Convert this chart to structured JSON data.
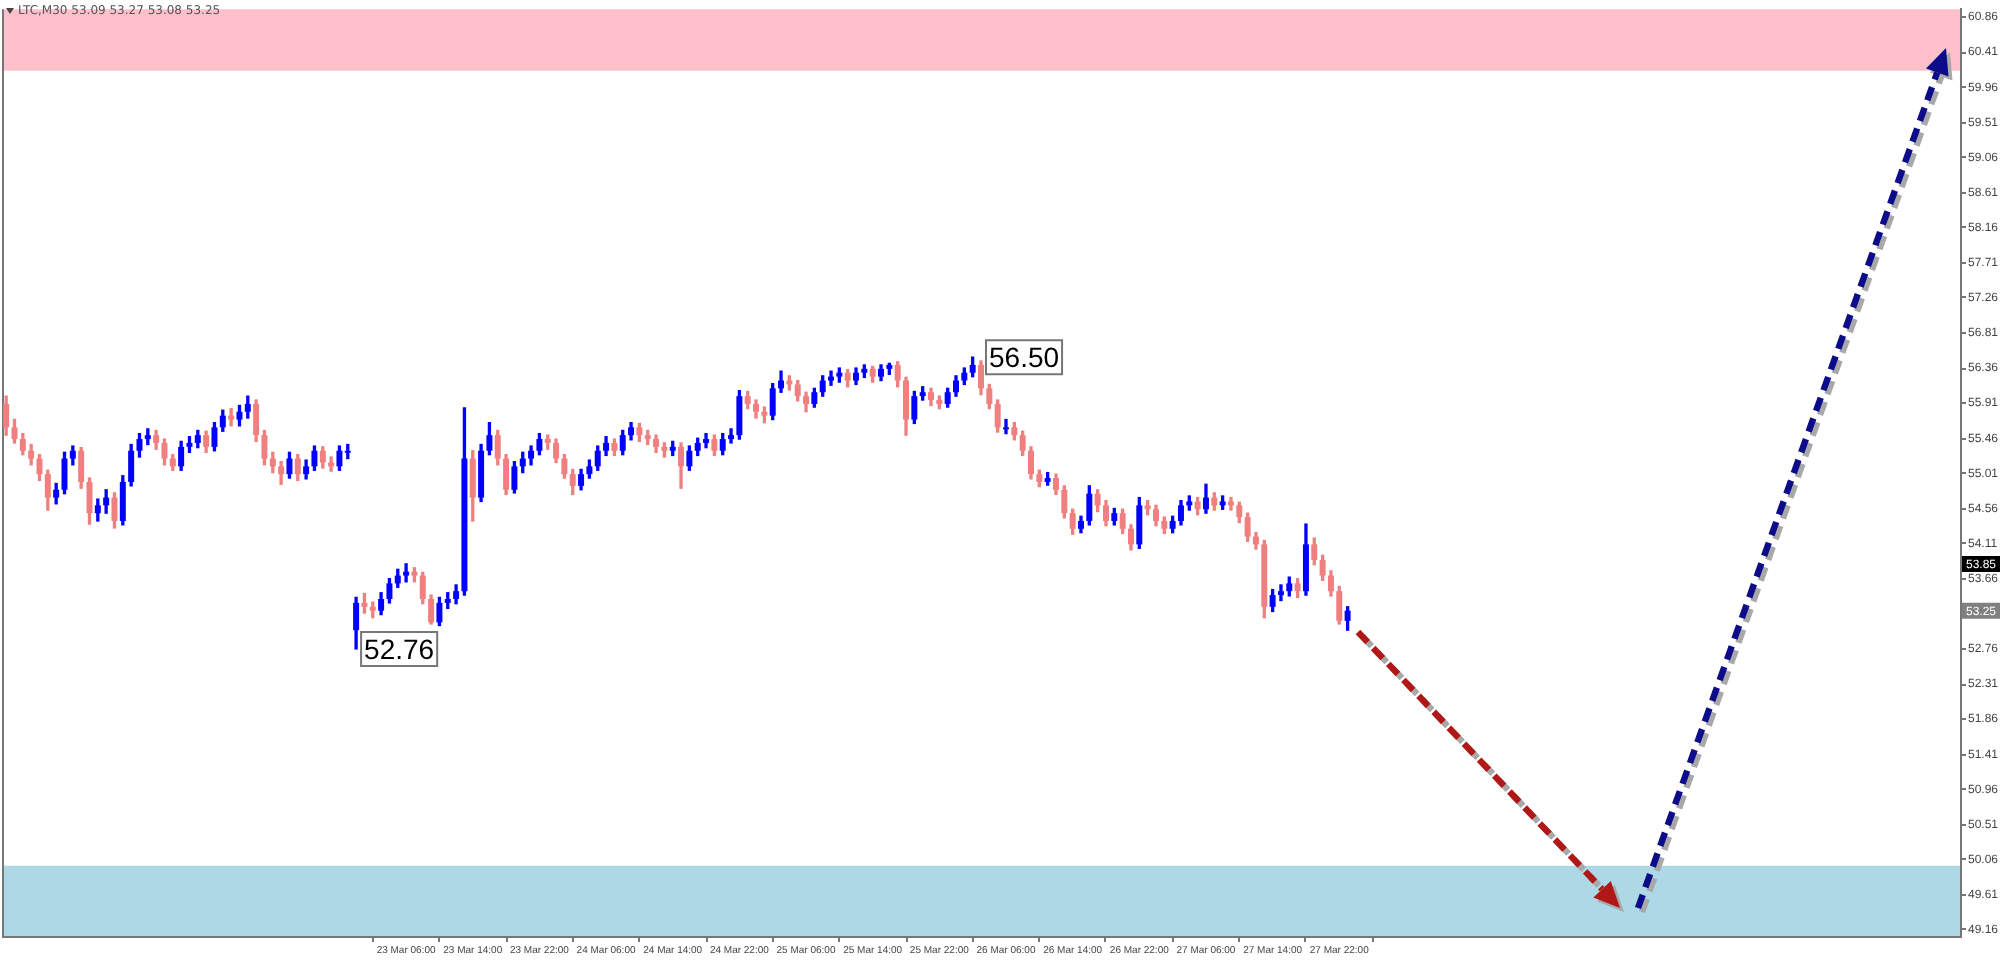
{
  "chart_data": {
    "type": "candlestick",
    "title": "LTC,M30 53.09 53.27 53.08 53.25",
    "categories": [
      null,
      null,
      null,
      null,
      null,
      null,
      null,
      null,
      null,
      null,
      null,
      null,
      null,
      null,
      null,
      null,
      null,
      null,
      null,
      null,
      null,
      null,
      null,
      null,
      null,
      null,
      null,
      null,
      null,
      null,
      null,
      null,
      null,
      null,
      null,
      null,
      null,
      null,
      null,
      null,
      null,
      null,
      null,
      null,
      null,
      null,
      null,
      null,
      "23 Mar 06:00",
      null,
      null,
      null,
      null,
      null,
      null,
      null,
      "23 Mar 14:00",
      null,
      null,
      null,
      null,
      null,
      null,
      null,
      "23 Mar 22:00",
      null,
      null,
      null,
      null,
      null,
      null,
      null,
      "24 Mar 06:00",
      null,
      null,
      null,
      null,
      null,
      null,
      null,
      "24 Mar 14:00",
      null,
      null,
      null,
      null,
      null,
      null,
      null,
      "24 Mar 22:00",
      null,
      null,
      null,
      null,
      null,
      null,
      null,
      "25 Mar 06:00",
      null,
      null,
      null,
      null,
      null,
      null,
      null,
      "25 Mar 14:00",
      null,
      null,
      null,
      null,
      null,
      null,
      null,
      "25 Mar 22:00",
      null,
      null,
      null,
      null,
      null,
      null,
      null,
      "26 Mar 06:00",
      null,
      null,
      null,
      null,
      null,
      null,
      null,
      "26 Mar 14:00",
      null,
      null,
      null,
      null,
      null,
      null,
      null,
      "26 Mar 22:00",
      null,
      null,
      null,
      null,
      null,
      null,
      null,
      "27 Mar 06:00",
      null,
      null,
      null,
      null,
      null,
      null,
      null,
      "27 Mar 14:00",
      null,
      null,
      null,
      null,
      null,
      null,
      null,
      "27 Mar 22:00",
      null,
      null,
      null,
      null,
      null,
      null,
      null,
      null,
      null,
      null,
      null,
      null,
      null,
      null,
      null,
      null,
      null,
      null,
      null,
      null,
      null,
      null,
      null,
      null,
      null,
      null,
      null,
      null,
      null,
      null,
      null,
      null,
      null,
      null,
      null,
      null,
      null,
      null,
      null,
      null,
      null,
      null,
      null,
      null,
      null,
      null,
      null,
      null,
      null,
      null,
      null,
      null,
      null,
      null,
      null,
      null,
      null,
      null,
      null,
      null,
      null,
      null,
      null,
      null,
      null,
      null,
      null,
      null,
      null,
      null,
      null,
      null,
      null,
      null
    ],
    "ohlc": [
      [
        55.9,
        56.0,
        55.5,
        55.6
      ],
      [
        55.6,
        55.7,
        55.4,
        55.45
      ],
      [
        55.45,
        55.52,
        55.25,
        55.3
      ],
      [
        55.3,
        55.38,
        55.12,
        55.2
      ],
      [
        55.2,
        55.25,
        54.92,
        55.0
      ],
      [
        55.0,
        55.05,
        54.54,
        54.7
      ],
      [
        54.7,
        54.88,
        54.62,
        54.8
      ],
      [
        54.8,
        55.28,
        54.75,
        55.2
      ],
      [
        55.2,
        55.36,
        55.12,
        55.3
      ],
      [
        55.3,
        55.34,
        54.82,
        54.9
      ],
      [
        54.9,
        54.95,
        54.36,
        54.5
      ],
      [
        54.5,
        54.68,
        54.4,
        54.6
      ],
      [
        54.6,
        54.8,
        54.5,
        54.7
      ],
      [
        54.7,
        54.76,
        54.31,
        54.4
      ],
      [
        54.4,
        54.98,
        54.35,
        54.9
      ],
      [
        54.9,
        55.38,
        54.85,
        55.3
      ],
      [
        55.3,
        55.52,
        55.22,
        55.45
      ],
      [
        55.45,
        55.58,
        55.38,
        55.5
      ],
      [
        55.5,
        55.56,
        55.32,
        55.4
      ],
      [
        55.4,
        55.45,
        55.12,
        55.2
      ],
      [
        55.2,
        55.25,
        55.05,
        55.1
      ],
      [
        55.1,
        55.42,
        55.05,
        55.35
      ],
      [
        55.35,
        55.48,
        55.28,
        55.4
      ],
      [
        55.4,
        55.56,
        55.34,
        55.5
      ],
      [
        55.5,
        55.55,
        55.28,
        55.35
      ],
      [
        55.35,
        55.66,
        55.3,
        55.6
      ],
      [
        55.6,
        55.82,
        55.55,
        55.75
      ],
      [
        55.75,
        55.84,
        55.62,
        55.7
      ],
      [
        55.7,
        55.88,
        55.62,
        55.8
      ],
      [
        55.8,
        56.0,
        55.72,
        55.9
      ],
      [
        55.9,
        55.95,
        55.42,
        55.5
      ],
      [
        55.5,
        55.56,
        55.12,
        55.2
      ],
      [
        55.2,
        55.28,
        55.02,
        55.1
      ],
      [
        55.1,
        55.16,
        54.87,
        55.0
      ],
      [
        55.0,
        55.28,
        54.95,
        55.2
      ],
      [
        55.2,
        55.25,
        54.92,
        55.0
      ],
      [
        55.0,
        55.18,
        54.94,
        55.1
      ],
      [
        55.1,
        55.36,
        55.05,
        55.3
      ],
      [
        55.3,
        55.35,
        55.08,
        55.15
      ],
      [
        55.15,
        55.22,
        55.04,
        55.1
      ],
      [
        55.1,
        55.36,
        55.05,
        55.3
      ],
      [
        55.3,
        55.38,
        55.2,
        55.3
      ],
      [
        53.0,
        53.42,
        52.76,
        53.35
      ],
      [
        53.35,
        53.47,
        53.22,
        53.3
      ],
      [
        53.3,
        53.36,
        53.16,
        53.25
      ],
      [
        53.25,
        53.48,
        53.2,
        53.4
      ],
      [
        53.4,
        53.66,
        53.35,
        53.6
      ],
      [
        53.6,
        53.78,
        53.55,
        53.7
      ],
      [
        53.7,
        53.85,
        53.62,
        53.75
      ],
      [
        53.75,
        53.8,
        53.62,
        53.7
      ],
      [
        53.7,
        53.74,
        53.34,
        53.4
      ],
      [
        53.4,
        53.45,
        53.08,
        53.1
      ],
      [
        53.1,
        53.42,
        53.06,
        53.35
      ],
      [
        53.35,
        53.48,
        53.28,
        53.4
      ],
      [
        53.4,
        53.58,
        53.34,
        53.5
      ],
      [
        53.5,
        55.85,
        53.45,
        55.2
      ],
      [
        55.2,
        55.3,
        54.4,
        54.7
      ],
      [
        54.7,
        55.38,
        54.65,
        55.3
      ],
      [
        55.3,
        55.66,
        55.25,
        55.5
      ],
      [
        55.5,
        55.56,
        55.12,
        55.2
      ],
      [
        55.2,
        55.25,
        54.74,
        54.8
      ],
      [
        54.8,
        55.16,
        54.76,
        55.1
      ],
      [
        55.1,
        55.28,
        55.02,
        55.2
      ],
      [
        55.2,
        55.36,
        55.12,
        55.3
      ],
      [
        55.3,
        55.52,
        55.25,
        55.45
      ],
      [
        55.45,
        55.5,
        55.32,
        55.4
      ],
      [
        55.4,
        55.45,
        55.15,
        55.2
      ],
      [
        55.2,
        55.25,
        54.95,
        55.0
      ],
      [
        55.0,
        55.06,
        54.74,
        54.85
      ],
      [
        54.85,
        55.06,
        54.8,
        55.0
      ],
      [
        55.0,
        55.18,
        54.95,
        55.1
      ],
      [
        55.1,
        55.36,
        55.05,
        55.3
      ],
      [
        55.3,
        55.48,
        55.24,
        55.4
      ],
      [
        55.4,
        55.45,
        55.24,
        55.3
      ],
      [
        55.3,
        55.56,
        55.25,
        55.5
      ],
      [
        55.5,
        55.66,
        55.44,
        55.6
      ],
      [
        55.6,
        55.65,
        55.42,
        55.5
      ],
      [
        55.5,
        55.56,
        55.38,
        55.45
      ],
      [
        55.45,
        55.5,
        55.28,
        55.35
      ],
      [
        55.35,
        55.4,
        55.22,
        55.3
      ],
      [
        55.3,
        55.42,
        55.24,
        55.35
      ],
      [
        55.35,
        55.4,
        54.82,
        55.1
      ],
      [
        55.1,
        55.36,
        55.05,
        55.3
      ],
      [
        55.3,
        55.46,
        55.24,
        55.4
      ],
      [
        55.4,
        55.52,
        55.34,
        55.45
      ],
      [
        55.45,
        55.5,
        55.24,
        55.3
      ],
      [
        55.3,
        55.52,
        55.25,
        55.45
      ],
      [
        55.45,
        55.58,
        55.4,
        55.5
      ],
      [
        55.5,
        56.07,
        55.45,
        56.0
      ],
      [
        56.0,
        56.06,
        55.84,
        55.9
      ],
      [
        55.9,
        55.95,
        55.72,
        55.8
      ],
      [
        55.8,
        55.86,
        55.66,
        55.75
      ],
      [
        55.75,
        56.16,
        55.7,
        56.1
      ],
      [
        56.1,
        56.32,
        56.05,
        56.2
      ],
      [
        56.2,
        56.26,
        56.08,
        56.15
      ],
      [
        56.15,
        56.2,
        55.94,
        56.0
      ],
      [
        56.0,
        56.05,
        55.8,
        55.9
      ],
      [
        55.9,
        56.1,
        55.86,
        56.05
      ],
      [
        56.05,
        56.26,
        56.0,
        56.2
      ],
      [
        56.2,
        56.32,
        56.14,
        56.25
      ],
      [
        56.25,
        56.36,
        56.18,
        56.3
      ],
      [
        56.3,
        56.34,
        56.12,
        56.2
      ],
      [
        56.2,
        56.36,
        56.15,
        56.3
      ],
      [
        56.3,
        56.4,
        56.24,
        56.35
      ],
      [
        56.35,
        56.38,
        56.18,
        56.25
      ],
      [
        56.25,
        56.4,
        56.2,
        56.35
      ],
      [
        56.35,
        56.42,
        56.28,
        56.4
      ],
      [
        56.4,
        56.44,
        56.12,
        56.2
      ],
      [
        56.2,
        56.24,
        55.5,
        55.7
      ],
      [
        55.7,
        56.06,
        55.65,
        56.0
      ],
      [
        56.0,
        56.12,
        55.95,
        56.05
      ],
      [
        56.05,
        56.1,
        55.88,
        55.95
      ],
      [
        55.95,
        56.0,
        55.84,
        55.9
      ],
      [
        55.9,
        56.1,
        55.86,
        56.05
      ],
      [
        56.05,
        56.26,
        56.0,
        56.2
      ],
      [
        56.2,
        56.36,
        56.15,
        56.3
      ],
      [
        56.3,
        56.5,
        56.25,
        56.4
      ],
      [
        56.4,
        56.45,
        56.02,
        56.1
      ],
      [
        56.1,
        56.15,
        55.84,
        55.9
      ],
      [
        55.9,
        55.95,
        55.54,
        55.6
      ],
      [
        55.6,
        55.7,
        55.52,
        55.6
      ],
      [
        55.6,
        55.66,
        55.44,
        55.5
      ],
      [
        55.5,
        55.55,
        55.24,
        55.3
      ],
      [
        55.3,
        55.35,
        54.94,
        55.0
      ],
      [
        55.0,
        55.05,
        54.84,
        54.9
      ],
      [
        54.9,
        55.02,
        54.86,
        54.95
      ],
      [
        54.95,
        55.0,
        54.74,
        54.8
      ],
      [
        54.8,
        54.85,
        54.44,
        54.5
      ],
      [
        54.5,
        54.55,
        54.23,
        54.3
      ],
      [
        54.3,
        54.46,
        54.25,
        54.4
      ],
      [
        54.4,
        54.85,
        54.35,
        54.75
      ],
      [
        54.75,
        54.8,
        54.52,
        54.6
      ],
      [
        54.6,
        54.66,
        54.34,
        54.4
      ],
      [
        54.4,
        54.56,
        54.35,
        54.5
      ],
      [
        54.5,
        54.55,
        54.24,
        54.3
      ],
      [
        54.3,
        54.35,
        54.03,
        54.1
      ],
      [
        54.1,
        54.7,
        54.05,
        54.6
      ],
      [
        54.6,
        54.66,
        54.48,
        54.55
      ],
      [
        54.55,
        54.6,
        54.34,
        54.4
      ],
      [
        54.4,
        54.45,
        54.24,
        54.3
      ],
      [
        54.3,
        54.46,
        54.25,
        54.4
      ],
      [
        54.4,
        54.66,
        54.35,
        54.6
      ],
      [
        54.6,
        54.72,
        54.54,
        54.65
      ],
      [
        54.65,
        54.7,
        54.48,
        54.55
      ],
      [
        54.55,
        54.87,
        54.5,
        54.7
      ],
      [
        54.7,
        54.76,
        54.54,
        54.6
      ],
      [
        54.6,
        54.72,
        54.55,
        54.65
      ],
      [
        54.65,
        54.7,
        54.54,
        54.6
      ],
      [
        54.6,
        54.64,
        54.38,
        54.45
      ],
      [
        54.45,
        54.5,
        54.14,
        54.2
      ],
      [
        54.2,
        54.25,
        54.04,
        54.1
      ],
      [
        54.1,
        54.15,
        53.16,
        53.3
      ],
      [
        53.3,
        53.52,
        53.24,
        53.45
      ],
      [
        53.45,
        53.58,
        53.38,
        53.5
      ],
      [
        53.5,
        53.68,
        53.44,
        53.6
      ],
      [
        53.6,
        53.66,
        53.42,
        53.5
      ],
      [
        53.5,
        54.36,
        53.45,
        54.1
      ],
      [
        54.1,
        54.18,
        53.84,
        53.9
      ],
      [
        53.9,
        53.96,
        53.64,
        53.7
      ],
      [
        53.7,
        53.76,
        53.44,
        53.5
      ],
      [
        53.5,
        53.56,
        53.08,
        53.12
      ],
      [
        53.12,
        53.3,
        53.0,
        53.25
      ],
      null,
      null,
      null,
      null,
      null,
      null,
      null,
      null,
      null,
      null,
      null,
      null,
      null,
      null,
      null,
      null,
      null,
      null,
      null,
      null,
      null,
      null,
      null,
      null,
      null,
      null,
      null,
      null,
      null,
      null,
      null,
      null,
      null,
      null,
      null,
      null,
      null,
      null,
      null,
      null,
      null,
      null,
      null,
      null,
      null,
      null,
      null,
      null,
      null,
      null,
      null,
      null,
      null,
      null,
      null,
      null,
      null,
      null,
      null,
      null,
      null,
      null,
      null,
      null,
      null,
      null,
      null,
      null,
      null,
      null,
      null,
      null,
      null
    ],
    "colors": [
      "#f08080",
      "#f08080",
      "#f08080",
      "#f08080",
      "#f08080",
      "#f08080",
      "#0000ff",
      "#0000ff",
      "#0000ff",
      "#f08080",
      "#f08080",
      "#0000ff",
      "#0000ff",
      "#f08080",
      "#0000ff",
      "#0000ff",
      "#0000ff",
      "#0000ff",
      "#f08080",
      "#f08080",
      "#f08080",
      "#0000ff",
      "#0000ff",
      "#0000ff",
      "#f08080",
      "#0000ff",
      "#0000ff",
      "#f08080",
      "#0000ff",
      "#0000ff",
      "#f08080",
      "#f08080",
      "#f08080",
      "#f08080",
      "#0000ff",
      "#f08080",
      "#0000ff",
      "#0000ff",
      "#f08080",
      "#f08080",
      "#0000ff",
      "#0000ff",
      "#0000ff",
      "#f08080",
      "#f08080",
      "#0000ff",
      "#0000ff",
      "#0000ff",
      "#0000ff",
      "#f08080",
      "#f08080",
      "#f08080",
      "#0000ff",
      "#0000ff",
      "#0000ff",
      "#0000ff",
      "#f08080",
      "#0000ff",
      "#0000ff",
      "#f08080",
      "#f08080",
      "#0000ff",
      "#0000ff",
      "#0000ff",
      "#0000ff",
      "#f08080",
      "#f08080",
      "#f08080",
      "#f08080",
      "#0000ff",
      "#0000ff",
      "#0000ff",
      "#0000ff",
      "#f08080",
      "#0000ff",
      "#0000ff",
      "#f08080",
      "#f08080",
      "#f08080",
      "#f08080",
      "#0000ff",
      "#f08080",
      "#0000ff",
      "#0000ff",
      "#0000ff",
      "#f08080",
      "#0000ff",
      "#0000ff",
      "#0000ff",
      "#f08080",
      "#f08080",
      "#f08080",
      "#0000ff",
      "#0000ff",
      "#f08080",
      "#f08080",
      "#f08080",
      "#0000ff",
      "#0000ff",
      "#0000ff",
      "#0000ff",
      "#f08080",
      "#0000ff",
      "#0000ff",
      "#f08080",
      "#0000ff",
      "#0000ff",
      "#f08080",
      "#f08080",
      "#0000ff",
      "#0000ff",
      "#f08080",
      "#f08080",
      "#0000ff",
      "#0000ff",
      "#0000ff",
      "#0000ff",
      "#f08080",
      "#f08080",
      "#f08080",
      "#0000ff",
      "#f08080",
      "#f08080",
      "#f08080",
      "#f08080",
      "#0000ff",
      "#f08080",
      "#f08080",
      "#f08080",
      "#0000ff",
      "#0000ff",
      "#f08080",
      "#f08080",
      "#0000ff",
      "#f08080",
      "#f08080",
      "#0000ff",
      "#f08080",
      "#f08080",
      "#f08080",
      "#0000ff",
      "#0000ff",
      "#0000ff",
      "#f08080",
      "#0000ff",
      "#f08080",
      "#0000ff",
      "#f08080",
      "#f08080",
      "#f08080",
      "#f08080",
      "#f08080",
      "#0000ff",
      "#0000ff",
      "#0000ff",
      "#f08080",
      "#0000ff",
      "#f08080",
      "#f08080",
      "#f08080",
      "#f08080",
      "#0000ff",
      null,
      null,
      null,
      null,
      null,
      null,
      null,
      null,
      null,
      null,
      null,
      null,
      null,
      null,
      null,
      null,
      null,
      null,
      null,
      null,
      null,
      null,
      null,
      null,
      null,
      null,
      null,
      null,
      null,
      null,
      null,
      null,
      null,
      null,
      null,
      null,
      null,
      null,
      null,
      null,
      null,
      null,
      null,
      null,
      null,
      null,
      null,
      null,
      null,
      null,
      null,
      null,
      null,
      null,
      null,
      null,
      null,
      null,
      null,
      null,
      null,
      null,
      null,
      null,
      null,
      null,
      null,
      null,
      null,
      null,
      null,
      null,
      null
    ],
    "ylim": [
      49.08,
      60.96
    ],
    "yticks": [
      49.16,
      49.61,
      50.06,
      50.51,
      50.96,
      51.41,
      51.86,
      52.31,
      52.76,
      53.66,
      54.11,
      54.56,
      55.01,
      55.46,
      55.91,
      56.36,
      56.81,
      57.26,
      57.71,
      58.16,
      58.61,
      59.06,
      59.51,
      59.96,
      60.41,
      60.86
    ],
    "bands": [
      {
        "axis": "y",
        "from": 60.17,
        "to": 60.96,
        "color": "#ffc0cb"
      },
      {
        "axis": "y",
        "from": 49.08,
        "to": 49.98,
        "color": "#add8e6"
      }
    ],
    "annotations": [
      {
        "text": "56.50",
        "y": 56.5
      },
      {
        "text": "52.76",
        "y": 52.76
      },
      {
        "text": "53.85",
        "y": 53.85
      },
      {
        "text": "53.25",
        "y": 53.25
      }
    ]
  }
}
